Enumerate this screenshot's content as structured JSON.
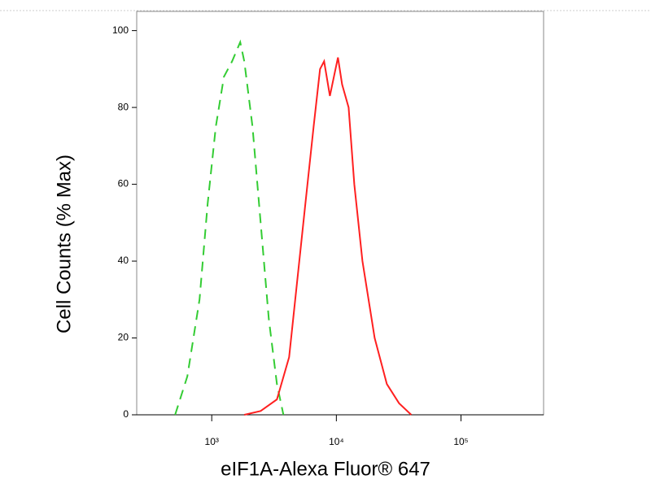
{
  "chart_data": {
    "type": "line",
    "x_label": "eIF1A-Alexa Fluor® 647",
    "y_label": "Cell Counts (% Max)",
    "x_scale": "log",
    "xlim": [
      250,
      460000
    ],
    "ylim": [
      0,
      105
    ],
    "xticks": [
      {
        "value": 1000,
        "label": "10³"
      },
      {
        "value": 10000,
        "label": "10⁴"
      },
      {
        "value": 100000,
        "label": "10⁵"
      }
    ],
    "yticks": [
      0,
      20,
      40,
      60,
      80,
      100
    ],
    "series": [
      {
        "color": "#33cc33",
        "dashed": true,
        "x": [
          508,
          637,
          798,
          927,
          1078,
          1253,
          1457,
          1693,
          1825,
          2123,
          2467,
          2869,
          3335,
          3760
        ],
        "values": [
          0,
          10,
          30,
          55,
          75,
          88,
          92,
          97,
          92,
          75,
          50,
          25,
          8,
          0
        ]
      },
      {
        "color": "#ff2020",
        "dashed": false,
        "x": [
          1825,
          2467,
          3335,
          4178,
          4857,
          5647,
          6566,
          7398,
          7979,
          8869,
          9844,
          10303,
          11110,
          12540,
          13930,
          16200,
          20280,
          25410,
          31840,
          39890
        ],
        "values": [
          0,
          1,
          4,
          15,
          35,
          55,
          75,
          90,
          92,
          83,
          90,
          93,
          86,
          80,
          60,
          40,
          20,
          8,
          3,
          0
        ]
      }
    ]
  }
}
